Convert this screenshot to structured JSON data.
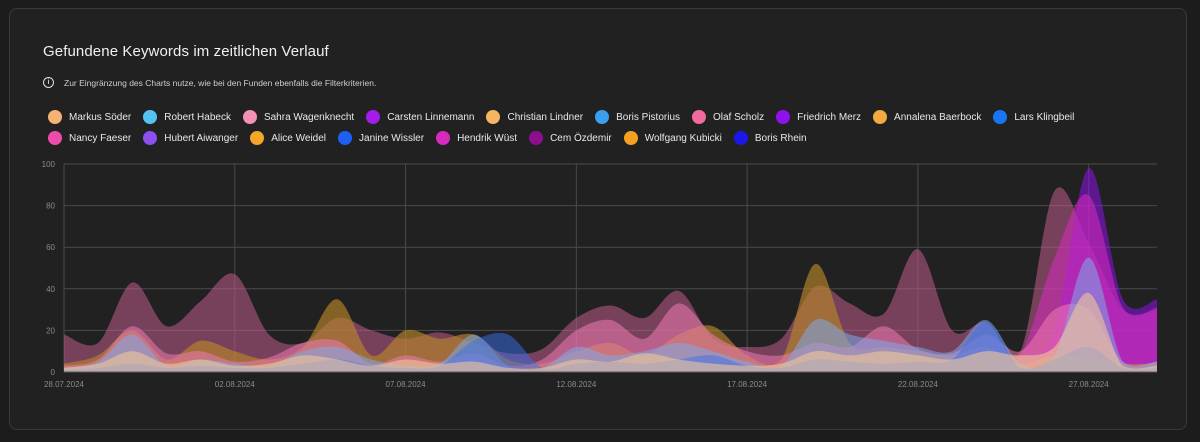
{
  "card": {
    "title": "Gefundene Keywords im zeitlichen Verlauf",
    "info_text": "Zur Eingränzung des Charts nutze, wie bei den Funden ebenfalls die Filterkriterien."
  },
  "legend": [
    {
      "name": "Markus Söder",
      "color": "#f5b274"
    },
    {
      "name": "Robert Habeck",
      "color": "#55c3f2"
    },
    {
      "name": "Sahra Wagenknecht",
      "color": "#f290b5"
    },
    {
      "name": "Carsten Linnemann",
      "color": "#a31ce8"
    },
    {
      "name": "Christian Lindner",
      "color": "#f7b463"
    },
    {
      "name": "Boris Pistorius",
      "color": "#3a9fee"
    },
    {
      "name": "Olaf Scholz",
      "color": "#f06aa0"
    },
    {
      "name": "Friedrich Merz",
      "color": "#8f12ec"
    },
    {
      "name": "Annalena Baerbock",
      "color": "#f6aa3e"
    },
    {
      "name": "Lars Klingbeil",
      "color": "#1877f0"
    },
    {
      "name": "Nancy Faeser",
      "color": "#ec4dac"
    },
    {
      "name": "Hubert Aiwanger",
      "color": "#8a50f0"
    },
    {
      "name": "Alice Weidel",
      "color": "#f5a52a"
    },
    {
      "name": "Janine Wissler",
      "color": "#1e5ef0"
    },
    {
      "name": "Hendrik Wüst",
      "color": "#d92ac0"
    },
    {
      "name": "Cem Özdemir",
      "color": "#8e0f8e"
    },
    {
      "name": "Wolfgang Kubicki",
      "color": "#f5a020"
    },
    {
      "name": "Boris Rhein",
      "color": "#1a18e8"
    }
  ],
  "chart_data": {
    "type": "area",
    "title": "Gefundene Keywords im zeitlichen Verlauf",
    "xlabel": "",
    "ylabel": "",
    "ylim": [
      0,
      100
    ],
    "yticks": [
      0,
      20,
      40,
      60,
      80,
      100
    ],
    "x_tick_labels": [
      "28.07.2024",
      "02.08.2024",
      "07.08.2024",
      "12.08.2024",
      "17.08.2024",
      "22.08.2024",
      "27.08.2024"
    ],
    "x_tick_indices": [
      0,
      5,
      10,
      15,
      20,
      25,
      30
    ],
    "x": [
      "28.07.2024",
      "29.07.2024",
      "30.07.2024",
      "31.07.2024",
      "01.08.2024",
      "02.08.2024",
      "03.08.2024",
      "04.08.2024",
      "05.08.2024",
      "06.08.2024",
      "07.08.2024",
      "08.08.2024",
      "09.08.2024",
      "10.08.2024",
      "11.08.2024",
      "12.08.2024",
      "13.08.2024",
      "14.08.2024",
      "15.08.2024",
      "16.08.2024",
      "17.08.2024",
      "18.08.2024",
      "19.08.2024",
      "20.08.2024",
      "21.08.2024",
      "22.08.2024",
      "23.08.2024",
      "24.08.2024",
      "25.08.2024",
      "26.08.2024",
      "27.08.2024",
      "28.08.2024",
      "29.08.2024"
    ],
    "series": [
      {
        "name": "Cem Özdemir",
        "color": "#c05d8e",
        "opacity": 0.55,
        "values": [
          18,
          14,
          43,
          22,
          34,
          47,
          18,
          14,
          26,
          20,
          16,
          19,
          14,
          9,
          11,
          26,
          32,
          26,
          39,
          16,
          12,
          16,
          41,
          33,
          28,
          59,
          20,
          24,
          10,
          87,
          62,
          30,
          30
        ]
      },
      {
        "name": "Friedrich Merz",
        "color": "#8f12ec",
        "opacity": 0.55,
        "values": [
          0,
          0,
          0,
          0,
          0,
          0,
          0,
          0,
          0,
          0,
          0,
          0,
          0,
          0,
          0,
          0,
          0,
          0,
          0,
          0,
          0,
          0,
          0,
          0,
          0,
          0,
          0,
          0,
          0,
          20,
          98,
          35,
          35
        ]
      },
      {
        "name": "Hendrik Wüst",
        "color": "#d92ac0",
        "opacity": 0.55,
        "values": [
          0,
          0,
          0,
          0,
          0,
          0,
          0,
          0,
          0,
          0,
          0,
          0,
          0,
          0,
          0,
          0,
          0,
          0,
          0,
          0,
          0,
          0,
          0,
          0,
          0,
          0,
          0,
          0,
          8,
          55,
          85,
          31,
          31
        ]
      },
      {
        "name": "Alice Weidel",
        "color": "#b8862a",
        "opacity": 0.65,
        "values": [
          4,
          8,
          20,
          6,
          15,
          10,
          6,
          12,
          35,
          8,
          20,
          16,
          18,
          6,
          4,
          10,
          14,
          8,
          18,
          22,
          8,
          6,
          52,
          14,
          12,
          10,
          8,
          12,
          4,
          8,
          6,
          4,
          4
        ]
      },
      {
        "name": "Sahra Wagenknecht",
        "color": "#f07ab0",
        "opacity": 0.55,
        "values": [
          3,
          6,
          22,
          9,
          10,
          5,
          7,
          14,
          15,
          4,
          8,
          5,
          9,
          3,
          6,
          20,
          25,
          16,
          33,
          18,
          10,
          8,
          14,
          12,
          22,
          11,
          9,
          18,
          10,
          30,
          30,
          5,
          5
        ]
      },
      {
        "name": "Robert Habeck",
        "color": "#7ea9e8",
        "opacity": 0.55,
        "values": [
          2,
          5,
          18,
          3,
          6,
          4,
          3,
          10,
          12,
          6,
          3,
          4,
          18,
          3,
          2,
          12,
          8,
          10,
          14,
          10,
          5,
          3,
          25,
          18,
          15,
          12,
          10,
          25,
          4,
          8,
          55,
          5,
          5
        ]
      },
      {
        "name": "Boris Pistorius",
        "color": "#3a6fee",
        "opacity": 0.5,
        "values": [
          1,
          2,
          4,
          2,
          3,
          2,
          2,
          4,
          6,
          3,
          2,
          3,
          15,
          18,
          2,
          4,
          5,
          4,
          6,
          8,
          3,
          2,
          6,
          5,
          4,
          5,
          6,
          24,
          2,
          6,
          12,
          2,
          2
        ]
      },
      {
        "name": "Christian Lindner",
        "color": "#f0c89a",
        "opacity": 0.6,
        "values": [
          2,
          4,
          10,
          4,
          6,
          3,
          4,
          8,
          6,
          3,
          6,
          4,
          5,
          2,
          2,
          6,
          5,
          9,
          6,
          4,
          3,
          4,
          10,
          8,
          10,
          8,
          6,
          10,
          8,
          12,
          38,
          3,
          3
        ]
      }
    ]
  }
}
